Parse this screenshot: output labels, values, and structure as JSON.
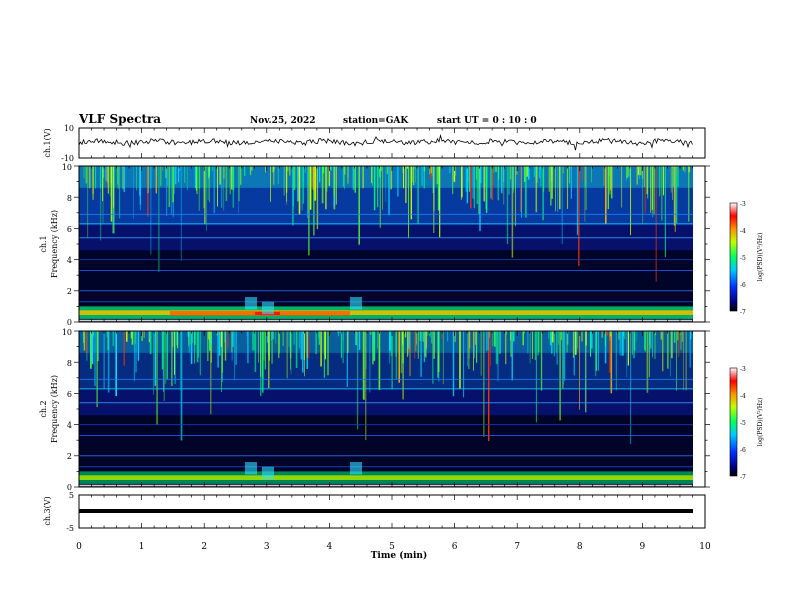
{
  "header": {
    "title": "VLF Spectra",
    "date": "Nov.25, 2022",
    "station": "station=GAK",
    "start": "start  UT =   0  : 10 : 0"
  },
  "chart_data": [
    {
      "type": "line",
      "panel": "ch1-waveform",
      "ylabel": "ch.1(V)",
      "ylim": [
        -10,
        10
      ],
      "yticks": [
        "10",
        "-10"
      ],
      "series": [
        {
          "values_description": "noisy waveform near 0 V"
        }
      ]
    },
    {
      "type": "heatmap",
      "panel": "ch1-spectrogram",
      "ylabel_line1": "ch.1",
      "ylabel_line2": "Frequency (kHz)",
      "ylim": [
        0,
        10
      ],
      "yticks": [
        "0",
        "2",
        "4",
        "6",
        "8",
        "10"
      ],
      "colorbar": {
        "label": "log(PSD)(V²/Hz)",
        "ticks": [
          "-3",
          "-4",
          "-5",
          "-6",
          "-7"
        ],
        "range": [
          -7,
          -3
        ]
      }
    },
    {
      "type": "heatmap",
      "panel": "ch2-spectrogram",
      "ylabel_line1": "ch.2",
      "ylabel_line2": "Frequency (kHz)",
      "ylim": [
        0,
        10
      ],
      "yticks": [
        "0",
        "2",
        "4",
        "6",
        "8",
        "10"
      ],
      "colorbar": {
        "label": "log(PSD)(V²/Hz)",
        "ticks": [
          "-3",
          "-4",
          "-5",
          "-6",
          "-7"
        ],
        "range": [
          -7,
          -3
        ]
      }
    },
    {
      "type": "line",
      "panel": "ch3-waveform",
      "ylabel": "ch.3(V)",
      "ylim": [
        -5,
        5
      ],
      "yticks": [
        "5",
        "-5"
      ],
      "series": [
        {
          "values_description": "flat line near -1 V"
        }
      ]
    }
  ],
  "xaxis": {
    "label": "Time (min)",
    "ticks": [
      "0",
      "1",
      "2",
      "3",
      "4",
      "5",
      "6",
      "7",
      "8",
      "9",
      "10"
    ],
    "range": [
      0,
      10
    ]
  }
}
